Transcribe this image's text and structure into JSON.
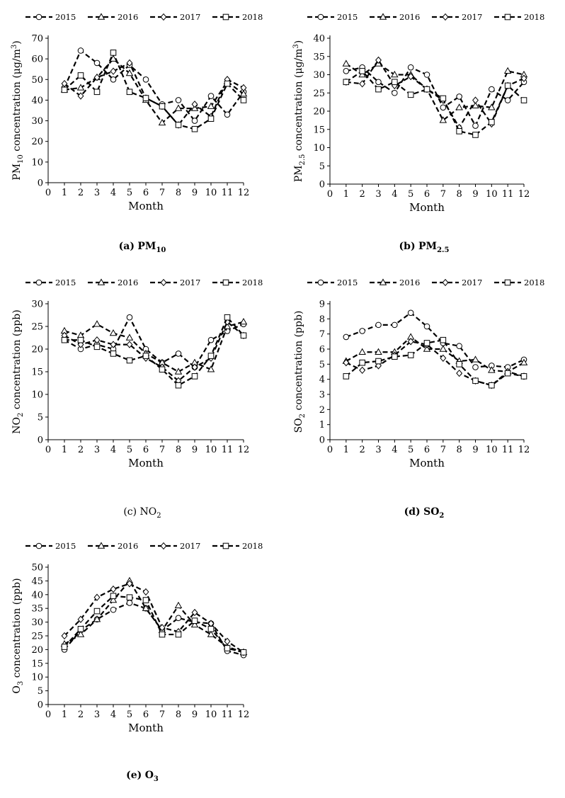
{
  "panels": [
    {
      "caption_prefix": "(a)",
      "caption_species": "PM",
      "caption_sub": "10",
      "caption_bold": true,
      "ylabel_pre": "PM",
      "ylabel_sub": "10",
      "ylabel_post": " concentration (μg/m",
      "ylabel_sup": "3",
      "ylabel_end": ")"
    },
    {
      "caption_prefix": "(b)",
      "caption_species": "PM",
      "caption_sub": "2.5",
      "caption_bold": true,
      "ylabel_pre": "PM",
      "ylabel_sub": "2.5",
      "ylabel_post": " concentration (μg/m",
      "ylabel_sup": "3",
      "ylabel_end": ")"
    },
    {
      "caption_prefix": "(c)",
      "caption_species": "NO",
      "caption_sub": "2",
      "caption_bold": false,
      "ylabel_pre": "NO",
      "ylabel_sub": "2",
      "ylabel_post": " concentration (ppb)",
      "ylabel_sup": "",
      "ylabel_end": ""
    },
    {
      "caption_prefix": "(d)",
      "caption_species": "SO",
      "caption_sub": "2",
      "caption_bold": true,
      "ylabel_pre": "SO",
      "ylabel_sub": "2",
      "ylabel_post": " concentration (ppb)",
      "ylabel_sup": "",
      "ylabel_end": ""
    },
    {
      "caption_prefix": "(e)",
      "caption_species": "O",
      "caption_sub": "3",
      "caption_bold": true,
      "ylabel_pre": "O",
      "ylabel_sub": "3",
      "ylabel_post": " concentration (ppb)",
      "ylabel_sup": "",
      "ylabel_end": ""
    }
  ],
  "chart_data": [
    {
      "type": "line",
      "xlabel": "Month",
      "x": [
        1,
        2,
        3,
        4,
        5,
        6,
        7,
        8,
        9,
        10,
        11,
        12
      ],
      "xlim": [
        0,
        12
      ],
      "ylim": [
        0,
        70
      ],
      "yticks": [
        0,
        10,
        20,
        30,
        40,
        50,
        60,
        70
      ],
      "legend_position": "top",
      "series": [
        {
          "name": "2015",
          "marker": "circle",
          "values": [
            46,
            64,
            58,
            50,
            57,
            50,
            38,
            40,
            30,
            42,
            33,
            44
          ]
        },
        {
          "name": "2016",
          "marker": "triangle",
          "values": [
            45,
            46,
            51,
            60,
            53,
            40,
            29,
            36,
            36,
            37,
            49,
            43
          ]
        },
        {
          "name": "2017",
          "marker": "diamond",
          "values": [
            48,
            42,
            51,
            54,
            58,
            41,
            37,
            28,
            38,
            32,
            50,
            46
          ]
        },
        {
          "name": "2018",
          "marker": "square",
          "values": [
            45,
            52,
            44,
            63,
            44,
            41,
            37,
            28,
            26,
            31,
            48,
            40
          ]
        }
      ]
    },
    {
      "type": "line",
      "xlabel": "Month",
      "x": [
        1,
        2,
        3,
        4,
        5,
        6,
        7,
        8,
        9,
        10,
        11,
        12
      ],
      "xlim": [
        0,
        12
      ],
      "ylim": [
        0,
        40
      ],
      "yticks": [
        0,
        5,
        10,
        15,
        20,
        25,
        30,
        35,
        40
      ],
      "legend_position": "top",
      "series": [
        {
          "name": "2015",
          "marker": "circle",
          "values": [
            31,
            32,
            28,
            25,
            32,
            30,
            21,
            24,
            16,
            26,
            23,
            28
          ]
        },
        {
          "name": "2016",
          "marker": "triangle",
          "values": [
            33,
            30,
            33,
            30,
            30,
            26,
            17.5,
            21,
            21.5,
            21,
            31,
            30
          ]
        },
        {
          "name": "2017",
          "marker": "diamond",
          "values": [
            28,
            27.5,
            34,
            27,
            29.5,
            26,
            23,
            15.5,
            23,
            16.5,
            27,
            29
          ]
        },
        {
          "name": "2018",
          "marker": "square",
          "values": [
            28,
            31,
            26,
            28,
            24.5,
            26,
            23.5,
            14.5,
            13.5,
            17,
            27,
            23
          ]
        }
      ]
    },
    {
      "type": "line",
      "xlabel": "Month",
      "x": [
        1,
        2,
        3,
        4,
        5,
        6,
        7,
        8,
        9,
        10,
        11,
        12
      ],
      "xlim": [
        0,
        12
      ],
      "ylim": [
        0,
        30
      ],
      "yticks": [
        0,
        5,
        10,
        15,
        20,
        25,
        30
      ],
      "legend_position": "top",
      "series": [
        {
          "name": "2015",
          "marker": "circle",
          "values": [
            22,
            20,
            21,
            20,
            27,
            20,
            17,
            19,
            16,
            22,
            24,
            25.5
          ]
        },
        {
          "name": "2016",
          "marker": "triangle",
          "values": [
            24,
            23,
            25.5,
            23.5,
            22.5,
            19,
            17,
            15,
            17,
            15.5,
            25,
            26
          ]
        },
        {
          "name": "2017",
          "marker": "diamond",
          "values": [
            23,
            21,
            22,
            21,
            21,
            18,
            16,
            13,
            16,
            18,
            26,
            23
          ]
        },
        {
          "name": "2018",
          "marker": "square",
          "values": [
            22,
            22,
            20.5,
            19,
            17.5,
            18.5,
            15.5,
            12,
            14,
            18.5,
            27,
            23
          ]
        }
      ]
    },
    {
      "type": "line",
      "xlabel": "Month",
      "x": [
        1,
        2,
        3,
        4,
        5,
        6,
        7,
        8,
        9,
        10,
        11,
        12
      ],
      "xlim": [
        0,
        12
      ],
      "ylim": [
        0,
        9
      ],
      "yticks": [
        0,
        1,
        2,
        3,
        4,
        5,
        6,
        7,
        8,
        9
      ],
      "legend_position": "top",
      "series": [
        {
          "name": "2015",
          "marker": "circle",
          "values": [
            6.8,
            7.2,
            7.6,
            7.6,
            8.4,
            7.5,
            6.4,
            6.2,
            4.8,
            4.9,
            4.8,
            5.3
          ]
        },
        {
          "name": "2016",
          "marker": "triangle",
          "values": [
            5.2,
            5.8,
            5.8,
            5.8,
            6.8,
            6.0,
            6.0,
            5.2,
            5.3,
            4.6,
            4.5,
            5.1
          ]
        },
        {
          "name": "2017",
          "marker": "diamond",
          "values": [
            5.1,
            4.6,
            4.9,
            5.6,
            6.5,
            6.3,
            5.4,
            4.4,
            3.9,
            3.6,
            4.5,
            4.2
          ]
        },
        {
          "name": "2018",
          "marker": "square",
          "values": [
            4.2,
            5.1,
            5.2,
            5.5,
            5.6,
            6.4,
            6.6,
            5.0,
            3.9,
            3.6,
            4.4,
            4.2
          ]
        }
      ]
    },
    {
      "type": "line",
      "xlabel": "Month",
      "x": [
        1,
        2,
        3,
        4,
        5,
        6,
        7,
        8,
        9,
        10,
        11,
        12
      ],
      "xlim": [
        0,
        12
      ],
      "ylim": [
        0,
        50
      ],
      "yticks": [
        0,
        5,
        10,
        15,
        20,
        25,
        30,
        35,
        40,
        45,
        50
      ],
      "legend_position": "top",
      "series": [
        {
          "name": "2015",
          "marker": "circle",
          "values": [
            20,
            27,
            31,
            34.5,
            37,
            35,
            27,
            31.5,
            30,
            29.5,
            19.5,
            18
          ]
        },
        {
          "name": "2016",
          "marker": "triangle",
          "values": [
            22,
            25.5,
            31,
            38,
            45,
            35,
            27,
            36,
            29,
            25.5,
            21,
            19
          ]
        },
        {
          "name": "2017",
          "marker": "diamond",
          "values": [
            25,
            31,
            39,
            42,
            44,
            41,
            28,
            26.5,
            33.5,
            29.5,
            23,
            19
          ]
        },
        {
          "name": "2018",
          "marker": "square",
          "values": [
            21,
            27.5,
            34,
            39.5,
            39,
            38,
            25.5,
            25.5,
            30.5,
            27.5,
            20.5,
            19
          ]
        }
      ]
    }
  ]
}
